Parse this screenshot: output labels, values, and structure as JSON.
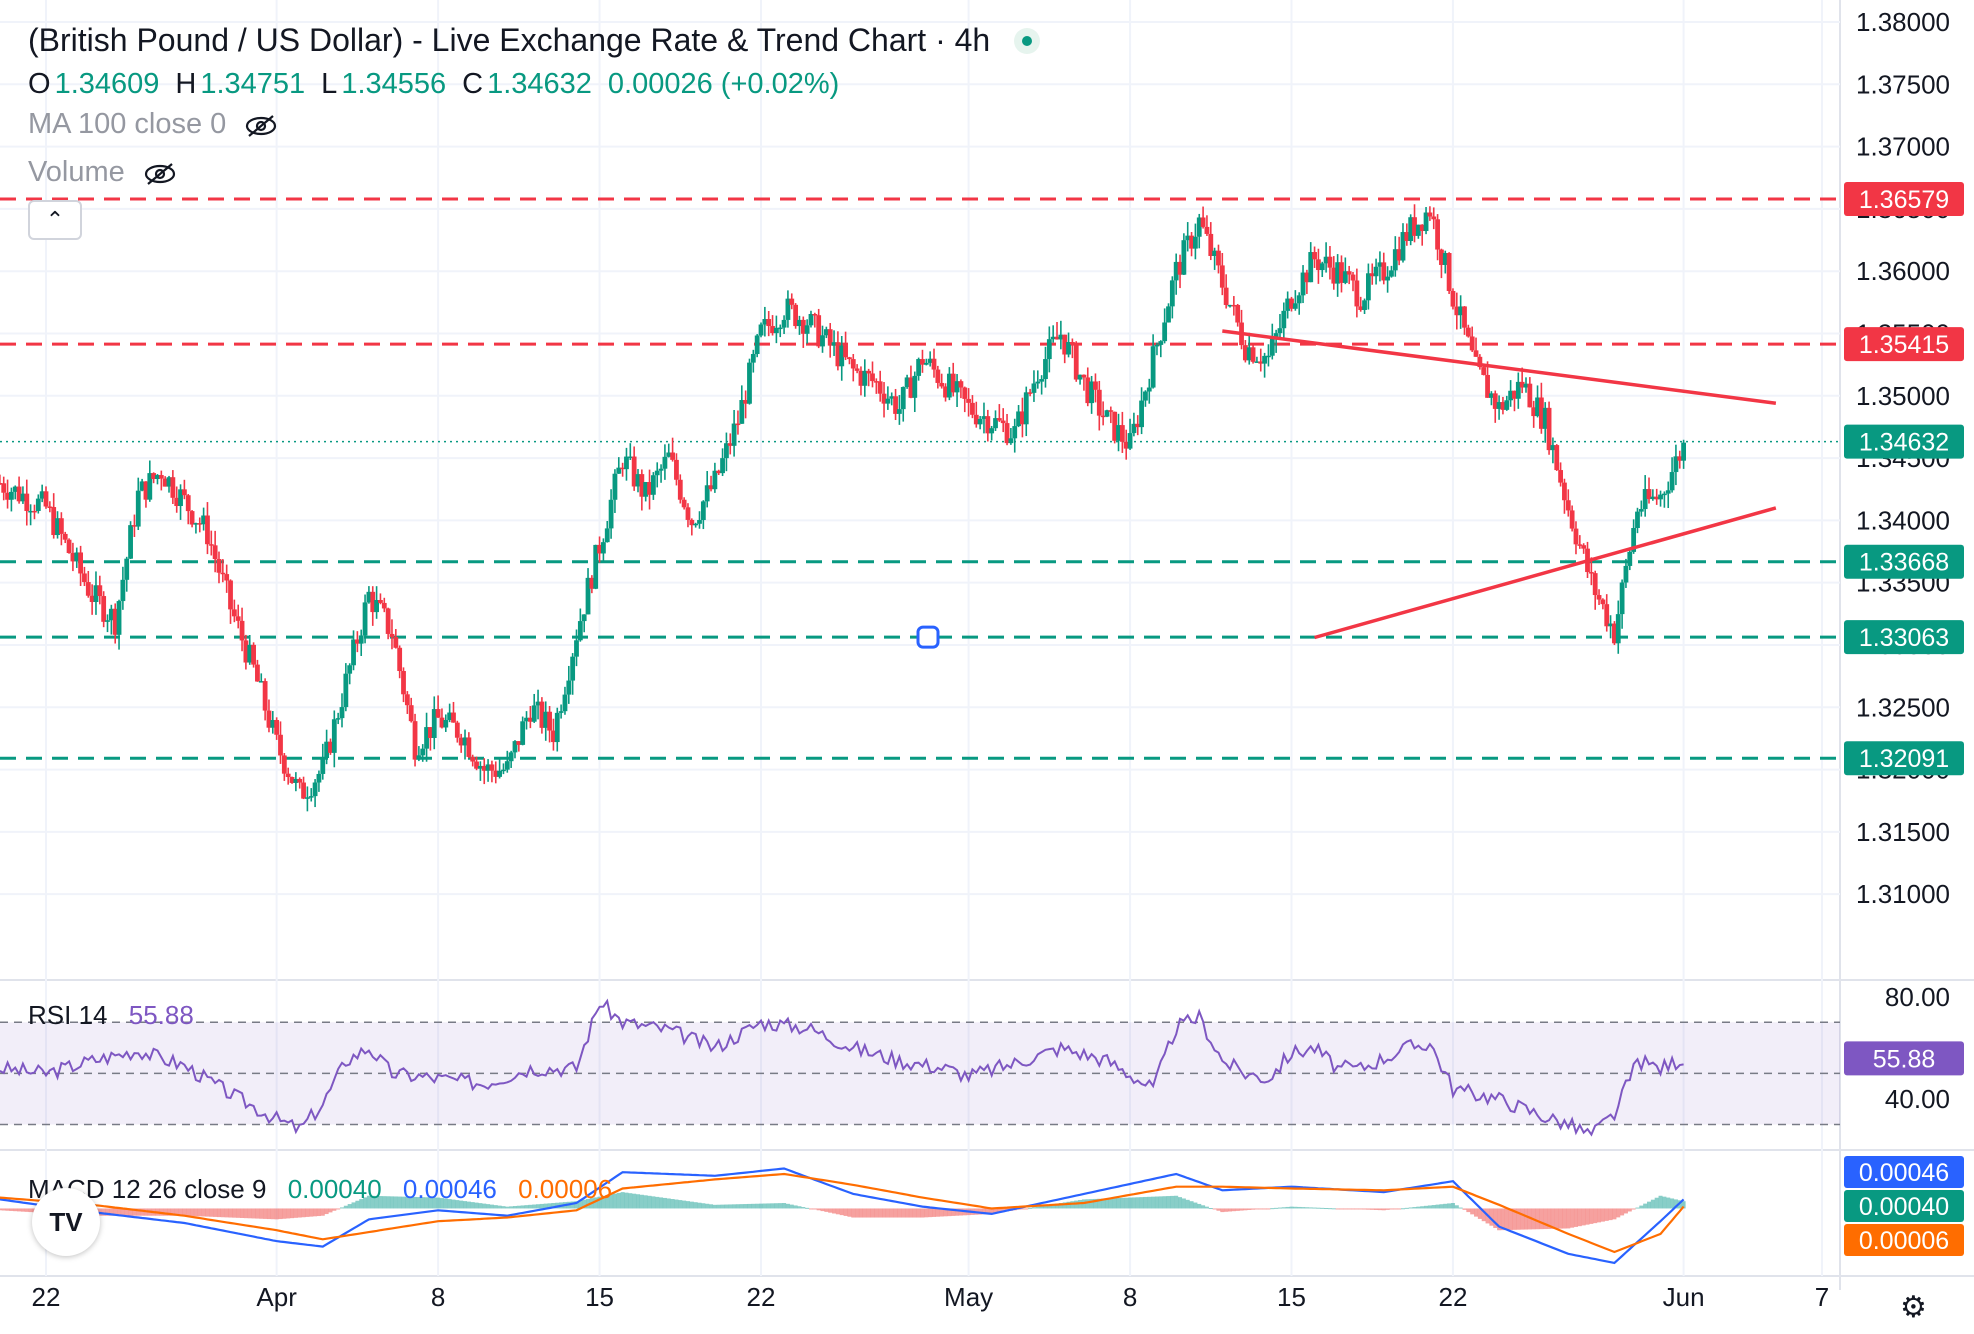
{
  "title": "(British Pound / US Dollar) - Live Exchange Rate & Trend Chart · 4h",
  "ohlc": {
    "open_label": "O",
    "open": "1.34609",
    "high_label": "H",
    "high": "1.34751",
    "low_label": "L",
    "low": "1.34556",
    "close_label": "C",
    "close": "1.34632",
    "change": "0.00026 (+0.02%)"
  },
  "ma_label": "MA 100 close 0",
  "volume_label": "Volume",
  "collapse_icon": "chevron-up-icon",
  "colors": {
    "up": "#089981",
    "down": "#f23645",
    "resistance": "#f23645",
    "support": "#089981",
    "rsi": "#7e57c2",
    "macd": "#2962ff",
    "signal": "#ff6d00"
  },
  "chart_data": [
    {
      "type": "candlestick",
      "title": "(British Pound / US Dollar) - Live Exchange Rate & Trend Chart · 4h",
      "timeframe": "4h",
      "ylim": [
        1.306,
        1.38
      ],
      "y_ticks": [
        "1.38000",
        "1.37500",
        "1.37000",
        "1.36500",
        "1.36000",
        "1.35500",
        "1.35000",
        "1.34500",
        "1.34000",
        "1.33500",
        "1.33000",
        "1.32500",
        "1.32000",
        "1.31500",
        "1.31000"
      ],
      "x_ticks": [
        "22",
        "Apr",
        "8",
        "15",
        "22",
        "May",
        "8",
        "15",
        "22",
        "Jun",
        "7"
      ],
      "x_tick_dates": [
        "03-22",
        "04-01",
        "04-08",
        "04-15",
        "04-22",
        "05-01",
        "05-08",
        "05-15",
        "05-22",
        "06-01",
        "06-07"
      ],
      "date_range": [
        "03-20",
        "06-01"
      ],
      "close_path": [
        [
          "03-20",
          1.343
        ],
        [
          "03-22",
          1.341
        ],
        [
          "03-24",
          1.334
        ],
        [
          "03-25",
          1.332
        ],
        [
          "03-26",
          1.342
        ],
        [
          "03-27",
          1.344
        ],
        [
          "03-29",
          1.339
        ],
        [
          "03-30",
          1.333
        ],
        [
          "03-31",
          1.328
        ],
        [
          "04-01",
          1.322
        ],
        [
          "04-02",
          1.318
        ],
        [
          "04-03",
          1.32
        ],
        [
          "04-04",
          1.327
        ],
        [
          "04-05",
          1.334
        ],
        [
          "04-06",
          1.331
        ],
        [
          "04-07",
          1.322
        ],
        [
          "04-08",
          1.324
        ],
        [
          "04-09",
          1.323
        ],
        [
          "04-10",
          1.32
        ],
        [
          "04-11",
          1.32
        ],
        [
          "04-12",
          1.325
        ],
        [
          "04-13",
          1.323
        ],
        [
          "04-14",
          1.331
        ],
        [
          "04-15",
          1.338
        ],
        [
          "04-16",
          1.345
        ],
        [
          "04-17",
          1.342
        ],
        [
          "04-18",
          1.345
        ],
        [
          "04-19",
          1.34
        ],
        [
          "04-20",
          1.343
        ],
        [
          "04-21",
          1.348
        ],
        [
          "04-22",
          1.355
        ],
        [
          "04-23",
          1.357
        ],
        [
          "04-24",
          1.356
        ],
        [
          "04-25",
          1.354
        ],
        [
          "04-26",
          1.352
        ],
        [
          "04-27",
          1.351
        ],
        [
          "04-28",
          1.349
        ],
        [
          "04-29",
          1.353
        ],
        [
          "04-30",
          1.351
        ],
        [
          "05-01",
          1.349
        ],
        [
          "05-02",
          1.348
        ],
        [
          "05-03",
          1.347
        ],
        [
          "05-04",
          1.352
        ],
        [
          "05-05",
          1.355
        ],
        [
          "05-06",
          1.351
        ],
        [
          "05-07",
          1.348
        ],
        [
          "05-08",
          1.346
        ],
        [
          "05-09",
          1.353
        ],
        [
          "05-10",
          1.36
        ],
        [
          "05-11",
          1.364
        ],
        [
          "05-12",
          1.359
        ],
        [
          "05-13",
          1.354
        ],
        [
          "05-14",
          1.353
        ],
        [
          "05-15",
          1.358
        ],
        [
          "05-16",
          1.361
        ],
        [
          "05-17",
          1.36
        ],
        [
          "05-18",
          1.358
        ],
        [
          "05-19",
          1.36
        ],
        [
          "05-20",
          1.363
        ],
        [
          "05-21",
          1.365
        ],
        [
          "05-22",
          1.358
        ],
        [
          "05-23",
          1.352
        ],
        [
          "05-24",
          1.349
        ],
        [
          "05-25",
          1.351
        ],
        [
          "05-26",
          1.348
        ],
        [
          "05-27",
          1.341
        ],
        [
          "05-28",
          1.335
        ],
        [
          "05-29",
          1.331
        ],
        [
          "05-30",
          1.341
        ],
        [
          "05-31",
          1.342
        ],
        [
          "06-01",
          1.346
        ]
      ],
      "levels": [
        {
          "label": "1.36579",
          "value": 1.36579,
          "kind": "resistance"
        },
        {
          "label": "1.35415",
          "value": 1.35415,
          "kind": "resistance"
        },
        {
          "label": "1.33668",
          "value": 1.33668,
          "kind": "support"
        },
        {
          "label": "1.33063",
          "value": 1.33063,
          "kind": "support"
        },
        {
          "label": "1.32091",
          "value": 1.32091,
          "kind": "support"
        }
      ],
      "last_price": {
        "label": "1.34632",
        "value": 1.34632
      },
      "trendlines": [
        {
          "name": "upper",
          "from": [
            "05-12",
            1.3552
          ],
          "to": [
            "06-05",
            1.3494
          ]
        },
        {
          "name": "lower",
          "from": [
            "05-16",
            1.3306
          ],
          "to": [
            "06-05",
            1.341
          ]
        }
      ]
    },
    {
      "type": "line",
      "title": "RSI 14",
      "legend_value": "55.88",
      "ylim": [
        20,
        85
      ],
      "y_ticks": [
        "80.00",
        "40.00"
      ],
      "band": [
        30,
        70
      ],
      "midline": 50,
      "last_value": "55.88",
      "series": [
        {
          "name": "RSI",
          "points": [
            [
              "03-20",
              52
            ],
            [
              "03-22",
              50
            ],
            [
              "03-24",
              55
            ],
            [
              "03-26",
              59
            ],
            [
              "03-28",
              53
            ],
            [
              "03-30",
              42
            ],
            [
              "04-01",
              32
            ],
            [
              "04-02",
              28
            ],
            [
              "04-03",
              38
            ],
            [
              "04-04",
              55
            ],
            [
              "04-05",
              60
            ],
            [
              "04-06",
              50
            ],
            [
              "04-08",
              48
            ],
            [
              "04-10",
              46
            ],
            [
              "04-12",
              52
            ],
            [
              "04-14",
              52
            ],
            [
              "04-15",
              78
            ],
            [
              "04-16",
              70
            ],
            [
              "04-18",
              67
            ],
            [
              "04-20",
              60
            ],
            [
              "04-22",
              70
            ],
            [
              "04-24",
              68
            ],
            [
              "04-26",
              60
            ],
            [
              "04-28",
              55
            ],
            [
              "04-30",
              52
            ],
            [
              "05-01",
              49
            ],
            [
              "05-03",
              54
            ],
            [
              "05-05",
              60
            ],
            [
              "05-07",
              55
            ],
            [
              "05-09",
              44
            ],
            [
              "05-10",
              68
            ],
            [
              "05-11",
              72
            ],
            [
              "05-12",
              55
            ],
            [
              "05-13",
              50
            ],
            [
              "05-14",
              48
            ],
            [
              "05-15",
              58
            ],
            [
              "05-16",
              60
            ],
            [
              "05-17",
              52
            ],
            [
              "05-18",
              52
            ],
            [
              "05-20",
              60
            ],
            [
              "05-21",
              62
            ],
            [
              "05-22",
              44
            ],
            [
              "05-24",
              40
            ],
            [
              "05-26",
              33
            ],
            [
              "05-27",
              30
            ],
            [
              "05-28",
              26
            ],
            [
              "05-29",
              34
            ],
            [
              "05-30",
              55
            ],
            [
              "05-31",
              52
            ],
            [
              "06-01",
              56
            ]
          ]
        }
      ]
    },
    {
      "type": "line",
      "title": "MACD 12 26 close 9",
      "legend_values": {
        "histogram": "0.00040",
        "macd": "0.00046",
        "signal": "0.00006"
      },
      "ylim": [
        -0.0035,
        0.003
      ],
      "last_labels": {
        "macd": "0.00046",
        "histogram": "0.00040",
        "signal": "0.00006"
      },
      "series": [
        {
          "name": "MACD",
          "points": [
            [
              "03-20",
              0.0005
            ],
            [
              "03-24",
              -0.0002
            ],
            [
              "03-28",
              -0.0008
            ],
            [
              "04-01",
              -0.0018
            ],
            [
              "04-03",
              -0.0021
            ],
            [
              "04-05",
              -0.0006
            ],
            [
              "04-08",
              -0.0001
            ],
            [
              "04-11",
              -0.0004
            ],
            [
              "04-14",
              0.0003
            ],
            [
              "04-16",
              0.002
            ],
            [
              "04-20",
              0.0018
            ],
            [
              "04-23",
              0.0022
            ],
            [
              "04-26",
              0.0008
            ],
            [
              "04-29",
              0.0001
            ],
            [
              "05-02",
              -0.0003
            ],
            [
              "05-06",
              0.0008
            ],
            [
              "05-10",
              0.0019
            ],
            [
              "05-12",
              0.001
            ],
            [
              "05-15",
              0.0012
            ],
            [
              "05-19",
              0.0009
            ],
            [
              "05-22",
              0.0015
            ],
            [
              "05-24",
              -0.001
            ],
            [
              "05-27",
              -0.0025
            ],
            [
              "05-29",
              -0.003
            ],
            [
              "05-31",
              -0.0007
            ],
            [
              "06-01",
              0.0005
            ]
          ]
        },
        {
          "name": "Signal",
          "points": [
            [
              "03-20",
              0.0006
            ],
            [
              "03-24",
              0.0002
            ],
            [
              "03-28",
              -0.0004
            ],
            [
              "04-01",
              -0.0012
            ],
            [
              "04-03",
              -0.0017
            ],
            [
              "04-05",
              -0.0013
            ],
            [
              "04-08",
              -0.0007
            ],
            [
              "04-11",
              -0.0005
            ],
            [
              "04-14",
              -0.0001
            ],
            [
              "04-16",
              0.0011
            ],
            [
              "04-20",
              0.0016
            ],
            [
              "04-23",
              0.0019
            ],
            [
              "04-26",
              0.0013
            ],
            [
              "04-29",
              0.0006
            ],
            [
              "05-02",
              0.0
            ],
            [
              "05-06",
              0.0003
            ],
            [
              "05-10",
              0.0012
            ],
            [
              "05-12",
              0.0012
            ],
            [
              "05-15",
              0.0011
            ],
            [
              "05-19",
              0.001
            ],
            [
              "05-22",
              0.0012
            ],
            [
              "05-24",
              0.0002
            ],
            [
              "05-27",
              -0.0014
            ],
            [
              "05-29",
              -0.0024
            ],
            [
              "05-31",
              -0.0014
            ],
            [
              "06-01",
              0.0001
            ]
          ]
        }
      ]
    }
  ]
}
